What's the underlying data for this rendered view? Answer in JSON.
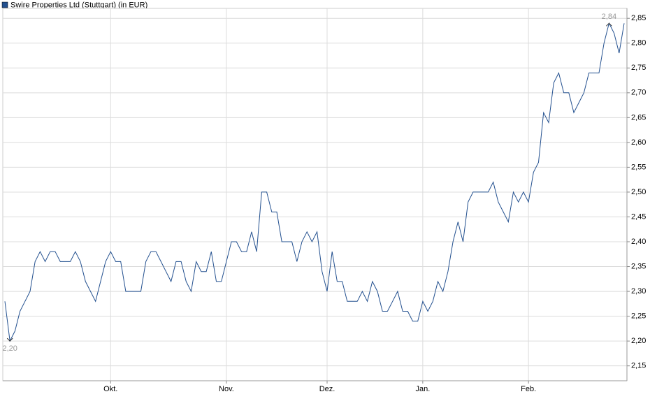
{
  "chart_data": {
    "type": "line",
    "series": [
      {
        "name": "Swire Properties Ltd (Stuttgart) (in EUR)",
        "color": "#23508f",
        "values": [
          2.28,
          2.2,
          2.22,
          2.26,
          2.28,
          2.3,
          2.36,
          2.38,
          2.36,
          2.38,
          2.38,
          2.36,
          2.36,
          2.36,
          2.38,
          2.36,
          2.32,
          2.3,
          2.28,
          2.32,
          2.36,
          2.38,
          2.36,
          2.36,
          2.3,
          2.3,
          2.3,
          2.3,
          2.36,
          2.38,
          2.38,
          2.36,
          2.34,
          2.32,
          2.36,
          2.36,
          2.32,
          2.3,
          2.36,
          2.34,
          2.34,
          2.38,
          2.32,
          2.32,
          2.36,
          2.4,
          2.4,
          2.38,
          2.38,
          2.42,
          2.38,
          2.5,
          2.5,
          2.46,
          2.46,
          2.4,
          2.4,
          2.4,
          2.36,
          2.4,
          2.42,
          2.4,
          2.42,
          2.34,
          2.3,
          2.38,
          2.32,
          2.32,
          2.28,
          2.28,
          2.28,
          2.3,
          2.28,
          2.32,
          2.3,
          2.26,
          2.26,
          2.28,
          2.3,
          2.26,
          2.26,
          2.24,
          2.24,
          2.28,
          2.26,
          2.28,
          2.32,
          2.3,
          2.34,
          2.4,
          2.44,
          2.4,
          2.48,
          2.5,
          2.5,
          2.5,
          2.5,
          2.52,
          2.48,
          2.46,
          2.44,
          2.5,
          2.48,
          2.5,
          2.48,
          2.54,
          2.56,
          2.66,
          2.64,
          2.72,
          2.74,
          2.7,
          2.7,
          2.66,
          2.68,
          2.7,
          2.74,
          2.74,
          2.74,
          2.8,
          2.84,
          2.82,
          2.78,
          2.84
        ]
      }
    ],
    "categories": [
      null,
      null,
      null,
      null,
      null,
      null,
      null,
      null,
      null,
      null,
      null,
      null,
      null,
      null,
      null,
      null,
      null,
      null,
      null,
      null,
      null,
      "Okt.",
      null,
      null,
      null,
      null,
      null,
      null,
      null,
      null,
      null,
      null,
      null,
      null,
      null,
      null,
      null,
      null,
      null,
      null,
      null,
      null,
      null,
      null,
      "Nov.",
      null,
      null,
      null,
      null,
      null,
      null,
      null,
      null,
      null,
      null,
      null,
      null,
      null,
      null,
      null,
      null,
      null,
      null,
      null,
      "Dez.",
      null,
      null,
      null,
      null,
      null,
      null,
      null,
      null,
      null,
      null,
      null,
      null,
      null,
      null,
      null,
      null,
      null,
      null,
      "Jan.",
      null,
      null,
      null,
      null,
      null,
      null,
      null,
      null,
      null,
      null,
      null,
      null,
      null,
      null,
      null,
      null,
      null,
      null,
      null,
      null,
      "Feb.",
      null,
      null,
      null,
      null,
      null,
      null,
      null,
      null,
      null,
      null,
      null,
      null,
      null,
      null,
      null,
      null,
      null,
      null,
      null
    ],
    "annotations": [
      {
        "text": "2,20",
        "value": 2.2
      },
      {
        "text": "2,84",
        "value": 2.84
      }
    ],
    "ylim": [
      2.12,
      2.87
    ],
    "yticks": [
      {
        "value": 2.15,
        "label": "2,15"
      },
      {
        "value": 2.2,
        "label": "2,20"
      },
      {
        "value": 2.25,
        "label": "2,25"
      },
      {
        "value": 2.3,
        "label": "2,30"
      },
      {
        "value": 2.35,
        "label": "2,35"
      },
      {
        "value": 2.4,
        "label": "2,40"
      },
      {
        "value": 2.45,
        "label": "2,45"
      },
      {
        "value": 2.5,
        "label": "2,50"
      },
      {
        "value": 2.55,
        "label": "2,55"
      },
      {
        "value": 2.6,
        "label": "2,60"
      },
      {
        "value": 2.65,
        "label": "2,65"
      },
      {
        "value": 2.7,
        "label": "2,70"
      },
      {
        "value": 2.75,
        "label": "2,75"
      },
      {
        "value": 2.8,
        "label": "2,80"
      },
      {
        "value": 2.85,
        "label": "2,85"
      }
    ],
    "grid": true
  }
}
